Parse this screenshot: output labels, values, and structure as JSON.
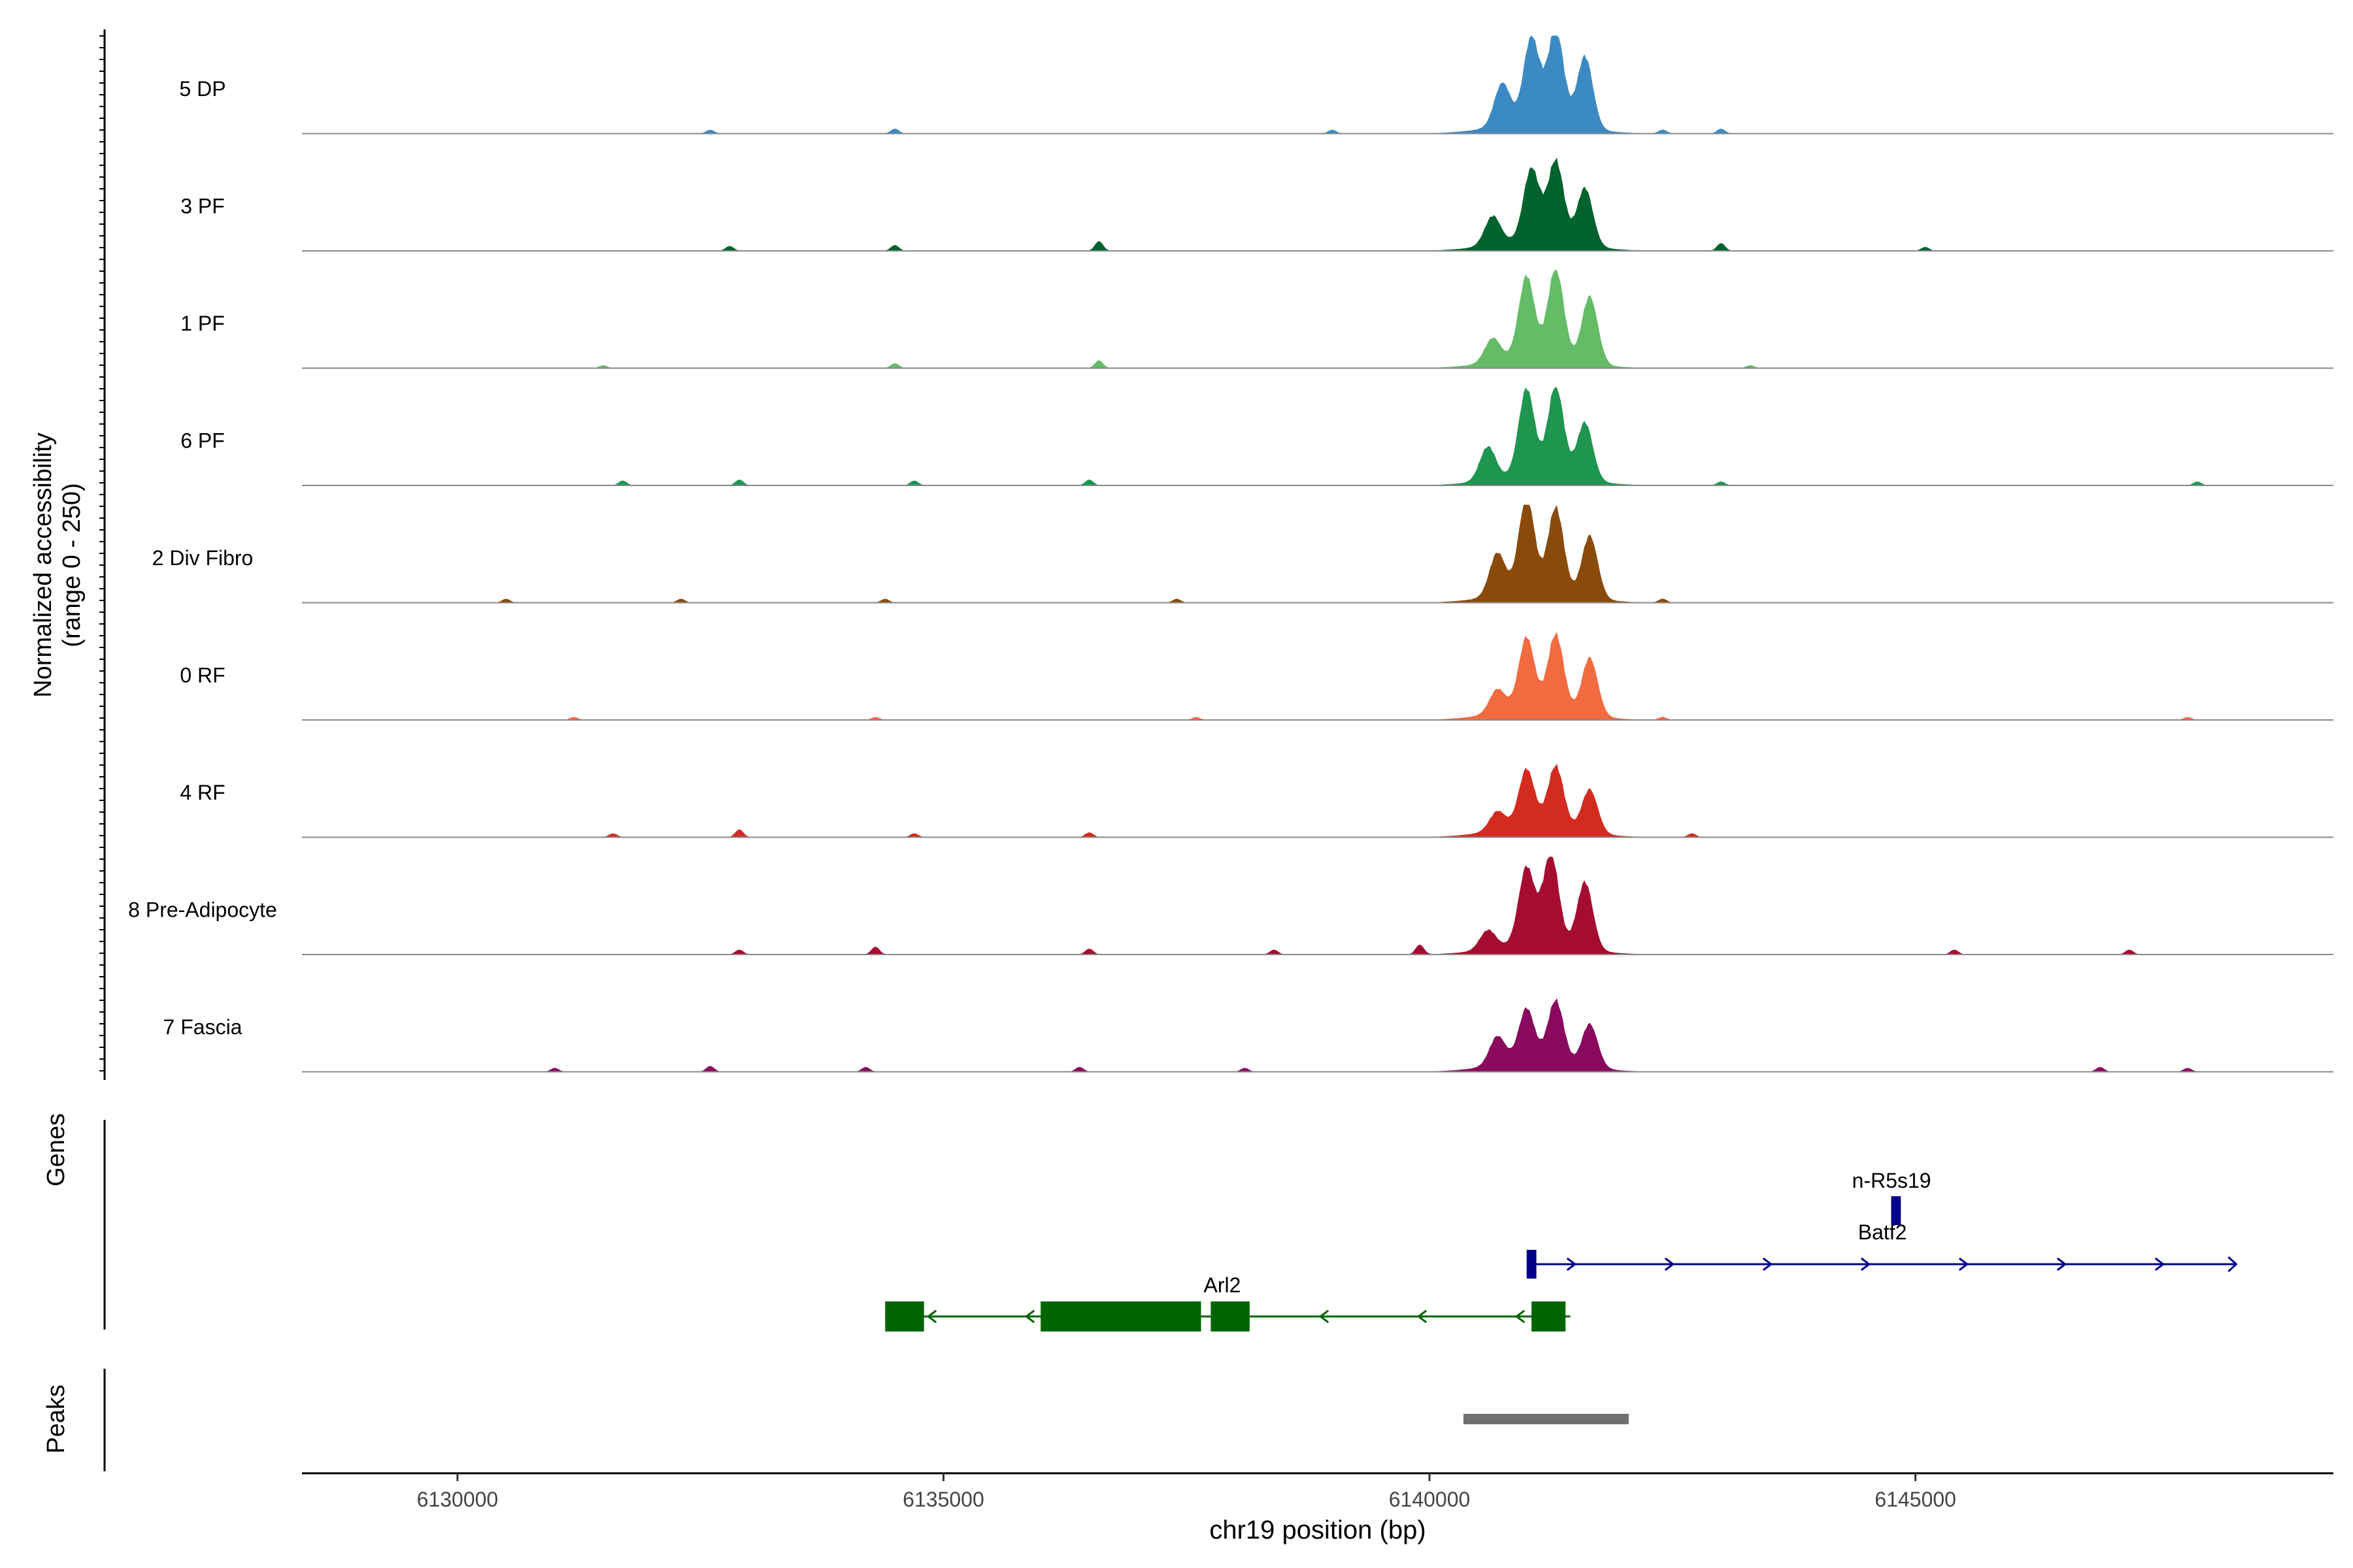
{
  "chart_data": {
    "type": "area",
    "title": "",
    "xlabel": "chr19 position (bp)",
    "ylabel": "Normalized accessibility",
    "ylabel_range": "(range 0 - 250)",
    "xlim": [
      6128400,
      6149300
    ],
    "ylim": [
      0,
      250
    ],
    "x_ticks": [
      6130000,
      6135000,
      6140000,
      6145000
    ],
    "x_tick_labels": [
      "6130000",
      "6135000",
      "6140000",
      "6145000"
    ],
    "tracks": [
      {
        "name": "5 DP",
        "color": "#3b8ac4",
        "peaks": [
          [
            6140750,
            0.45
          ],
          [
            6141050,
            0.9
          ],
          [
            6141300,
            1.0
          ],
          [
            6141600,
            0.75
          ]
        ],
        "noise": [
          [
            6132600,
            0.04
          ],
          [
            6134500,
            0.05
          ],
          [
            6139000,
            0.04
          ],
          [
            6142400,
            0.04
          ],
          [
            6143000,
            0.05
          ]
        ]
      },
      {
        "name": "3 PF",
        "color": "#00632e",
        "peaks": [
          [
            6140650,
            0.3
          ],
          [
            6141050,
            0.75
          ],
          [
            6141300,
            0.85
          ],
          [
            6141600,
            0.6
          ]
        ],
        "noise": [
          [
            6132800,
            0.05
          ],
          [
            6134500,
            0.06
          ],
          [
            6136600,
            0.1
          ],
          [
            6143000,
            0.08
          ],
          [
            6145100,
            0.04
          ]
        ]
      },
      {
        "name": "1 PF",
        "color": "#64bc66",
        "peaks": [
          [
            6140650,
            0.25
          ],
          [
            6141000,
            0.85
          ],
          [
            6141300,
            0.95
          ],
          [
            6141650,
            0.7
          ]
        ],
        "noise": [
          [
            6131500,
            0.03
          ],
          [
            6134500,
            0.05
          ],
          [
            6136600,
            0.08
          ],
          [
            6143300,
            0.03
          ]
        ]
      },
      {
        "name": "6 PF",
        "color": "#1e9650",
        "peaks": [
          [
            6140600,
            0.35
          ],
          [
            6141000,
            0.9
          ],
          [
            6141300,
            0.95
          ],
          [
            6141600,
            0.6
          ]
        ],
        "noise": [
          [
            6131700,
            0.05
          ],
          [
            6132900,
            0.06
          ],
          [
            6134700,
            0.05
          ],
          [
            6136500,
            0.06
          ],
          [
            6143000,
            0.04
          ],
          [
            6147900,
            0.04
          ]
        ]
      },
      {
        "name": "2 Div Fibro",
        "color": "#8a4a0a",
        "peaks": [
          [
            6140700,
            0.45
          ],
          [
            6141000,
            1.0
          ],
          [
            6141300,
            0.9
          ],
          [
            6141650,
            0.65
          ]
        ],
        "noise": [
          [
            6130500,
            0.04
          ],
          [
            6132300,
            0.04
          ],
          [
            6134400,
            0.04
          ],
          [
            6137400,
            0.04
          ],
          [
            6142400,
            0.04
          ]
        ]
      },
      {
        "name": "0 RF",
        "color": "#f26b40",
        "peaks": [
          [
            6140700,
            0.25
          ],
          [
            6141000,
            0.75
          ],
          [
            6141300,
            0.8
          ],
          [
            6141650,
            0.6
          ]
        ],
        "noise": [
          [
            6131200,
            0.03
          ],
          [
            6134300,
            0.03
          ],
          [
            6137600,
            0.03
          ],
          [
            6142400,
            0.03
          ],
          [
            6147800,
            0.03
          ]
        ]
      },
      {
        "name": "4 RF",
        "color": "#d42b20",
        "peaks": [
          [
            6140700,
            0.2
          ],
          [
            6141000,
            0.6
          ],
          [
            6141300,
            0.65
          ],
          [
            6141650,
            0.45
          ]
        ],
        "noise": [
          [
            6131600,
            0.04
          ],
          [
            6132900,
            0.08
          ],
          [
            6134700,
            0.04
          ],
          [
            6136500,
            0.05
          ],
          [
            6142700,
            0.04
          ]
        ]
      },
      {
        "name": "8 Pre-Adipocyte",
        "color": "#a50d30",
        "peaks": [
          [
            6140600,
            0.2
          ],
          [
            6141000,
            0.8
          ],
          [
            6141250,
            0.95
          ],
          [
            6141600,
            0.7
          ]
        ],
        "noise": [
          [
            6132900,
            0.05
          ],
          [
            6134300,
            0.08
          ],
          [
            6136500,
            0.06
          ],
          [
            6138400,
            0.05
          ],
          [
            6139900,
            0.1
          ],
          [
            6145400,
            0.05
          ],
          [
            6147200,
            0.05
          ]
        ]
      },
      {
        "name": "7 Fascia",
        "color": "#8a0a5e",
        "peaks": [
          [
            6140700,
            0.3
          ],
          [
            6141000,
            0.55
          ],
          [
            6141300,
            0.65
          ],
          [
            6141650,
            0.45
          ]
        ],
        "noise": [
          [
            6131000,
            0.04
          ],
          [
            6132600,
            0.06
          ],
          [
            6134200,
            0.05
          ],
          [
            6136400,
            0.05
          ],
          [
            6138100,
            0.04
          ],
          [
            6146900,
            0.05
          ],
          [
            6147800,
            0.04
          ]
        ]
      }
    ],
    "genes_track_label": "Genes",
    "genes": [
      {
        "name": "Batf2",
        "strand": "+",
        "color": "#00008b",
        "start": 6141000,
        "end": 6148300,
        "exons": [
          [
            6141000,
            6141100
          ]
        ]
      },
      {
        "name": "n-R5s19",
        "strand": "+",
        "color": "#00008b",
        "start": 6144750,
        "end": 6144850,
        "exons": [
          [
            6144750,
            6144850
          ]
        ]
      },
      {
        "name": "Arl2",
        "strand": "-",
        "color": "#006400",
        "start": 6134400,
        "end": 6141450,
        "exons": [
          [
            6134400,
            6134800
          ],
          [
            6136000,
            6137650
          ],
          [
            6137750,
            6138150
          ],
          [
            6141050,
            6141400
          ]
        ]
      }
    ],
    "peaks_track_label": "Peaks",
    "peak_regions": [
      [
        6140350,
        6142050
      ]
    ]
  }
}
